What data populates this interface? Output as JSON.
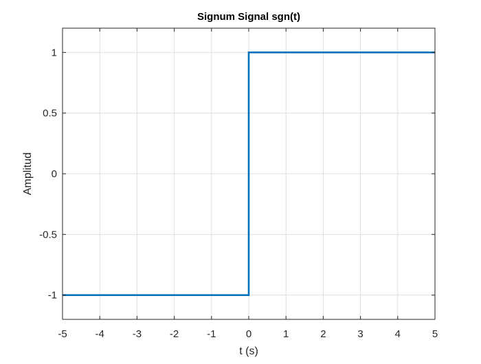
{
  "chart_data": {
    "type": "line",
    "title": "Signum Signal sgn(t)",
    "xlabel": "t (s)",
    "ylabel": "Amplitud",
    "xlim": [
      -5,
      5
    ],
    "ylim": [
      -1.2,
      1.2
    ],
    "grid": true,
    "x_ticks": [
      -5,
      -4,
      -3,
      -2,
      -1,
      0,
      1,
      2,
      3,
      4,
      5
    ],
    "x_tick_labels": [
      "-5",
      "-4",
      "-3",
      "-2",
      "-1",
      "0",
      "1",
      "2",
      "3",
      "4",
      "5"
    ],
    "y_ticks": [
      -1,
      -0.5,
      0,
      0.5,
      1
    ],
    "y_tick_labels": [
      "-1",
      "-0.5",
      "0",
      "0.5",
      "1"
    ],
    "series": [
      {
        "color": "#0072BD",
        "x": [
          -5,
          0,
          0,
          5
        ],
        "y": [
          -1,
          -1,
          1,
          1
        ]
      }
    ]
  }
}
